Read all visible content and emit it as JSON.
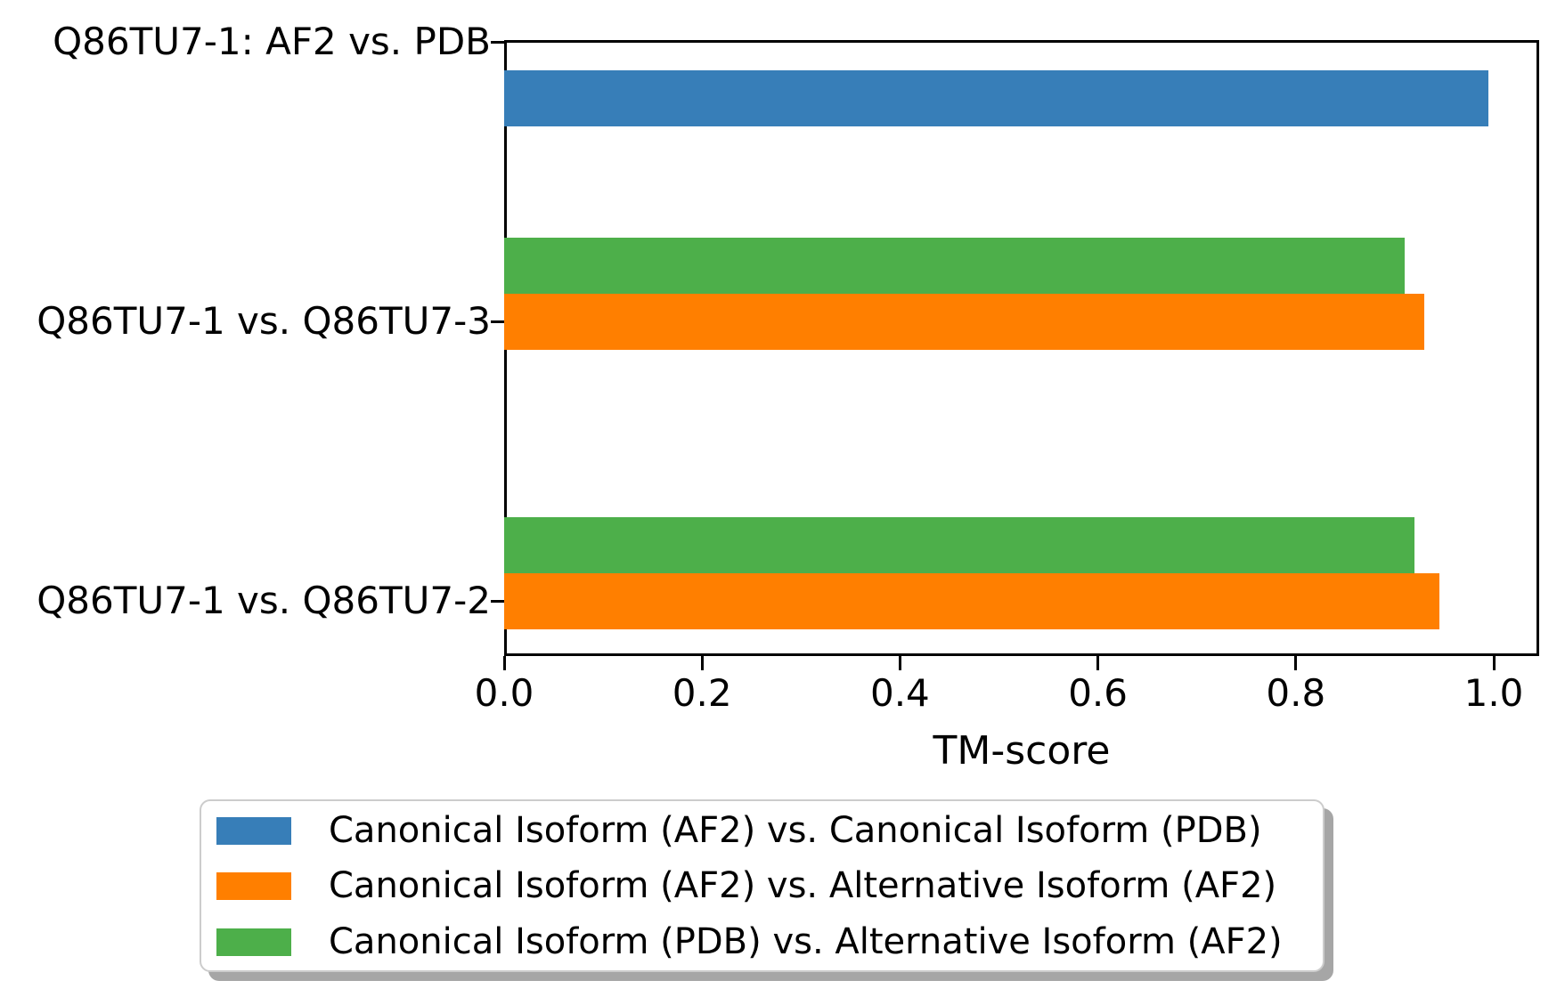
{
  "chart_data": {
    "type": "bar",
    "orientation": "horizontal",
    "xlabel": "TM-score",
    "categories": [
      "Q86TU7-1: AF2 vs. PDB",
      "Q86TU7-1 vs. Q86TU7-3",
      "Q86TU7-1 vs. Q86TU7-2"
    ],
    "series": [
      {
        "name": "Canonical Isoform (AF2) vs. Canonical Isoform (PDB)",
        "color": "#377eb8",
        "values": [
          0.995,
          null,
          null
        ]
      },
      {
        "name": "Canonical Isoform (AF2) vs. Alternative Isoform (AF2)",
        "color": "#ff7f00",
        "values": [
          null,
          0.93,
          0.945
        ]
      },
      {
        "name": "Canonical Isoform (PDB) vs. Alternative Isoform (AF2)",
        "color": "#4daf4a",
        "values": [
          null,
          0.91,
          0.92
        ]
      }
    ],
    "x_ticks": [
      0.0,
      0.2,
      0.4,
      0.6,
      0.8,
      1.0
    ],
    "x_tick_labels": [
      "0.0",
      "0.2",
      "0.4",
      "0.6",
      "0.8",
      "1.0"
    ],
    "xlim": [
      0.0,
      1.046
    ],
    "grid": false,
    "legend_position": "below-axis",
    "axis_color": "#000000",
    "background_color": "#ffffff"
  }
}
